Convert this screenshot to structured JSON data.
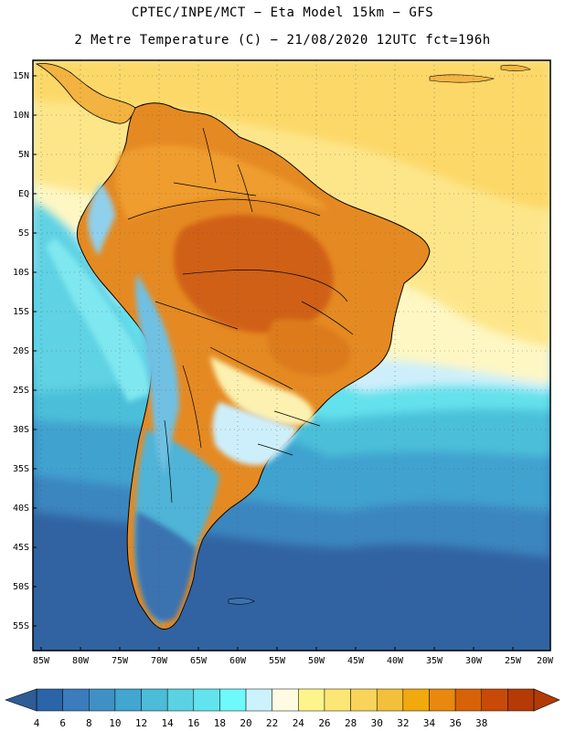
{
  "title": {
    "line1": "CPTEC/INPE/MCT −  Eta Model 15km − GFS",
    "line2": "2 Metre Temperature (C) − 21/08/2020 12UTC fct=196h"
  },
  "axes": {
    "lat_labels": [
      "15N",
      "10N",
      "5N",
      "EQ",
      "5S",
      "10S",
      "15S",
      "20S",
      "25S",
      "30S",
      "35S",
      "40S",
      "45S",
      "50S",
      "55S"
    ],
    "lon_labels": [
      "85W",
      "80W",
      "75W",
      "70W",
      "65W",
      "60W",
      "55W",
      "50W",
      "45W",
      "40W",
      "35W",
      "30W",
      "25W",
      "20W"
    ]
  },
  "colorbar": {
    "labels": [
      "4",
      "6",
      "8",
      "10",
      "12",
      "14",
      "16",
      "18",
      "20",
      "22",
      "24",
      "26",
      "28",
      "30",
      "32",
      "34",
      "36",
      "38"
    ],
    "colors": [
      "#2b64a8",
      "#3a7cbc",
      "#3f90c4",
      "#41a6d0",
      "#4cbcd8",
      "#5ad2e2",
      "#62e4ee",
      "#6ef9fb",
      "#ccf3fd",
      "#fefbe2",
      "#fdf58b",
      "#fde774",
      "#f8d45a",
      "#f2c03b",
      "#f1a90d",
      "#e9880f",
      "#d86208",
      "#c94a08",
      "#b53a06"
    ],
    "low_arrow_color": "#2e5d96",
    "high_arrow_color": "#b23a05"
  },
  "palette": {
    "ocean_south": "#3163a2",
    "ocean_mid": "#3c8fc4",
    "ocean_cyan": "#4bbfd9",
    "ocean_warm": "#fef6b8",
    "atlantic_tropical": "#fde07a",
    "caribbean": "#fcd35f",
    "land_hot": "#df7c1f",
    "land_hottest": "#cf5d12",
    "land_warm": "#f1ab36",
    "land_mild": "#fbe389",
    "andes": "#8ec6e6",
    "patagonia": "#3a72b0"
  }
}
